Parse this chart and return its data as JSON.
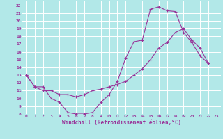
{
  "title": "",
  "xlabel": "Windchill (Refroidissement éolien,°C)",
  "background_color": "#b2e8e8",
  "grid_color": "#ffffff",
  "line_color": "#993399",
  "xlim": [
    -0.5,
    23.5
  ],
  "ylim": [
    8,
    22.5
  ],
  "xticks": [
    0,
    1,
    2,
    3,
    4,
    5,
    6,
    7,
    8,
    9,
    10,
    11,
    12,
    13,
    14,
    15,
    16,
    17,
    18,
    19,
    20,
    21,
    22,
    23
  ],
  "yticks": [
    8,
    9,
    10,
    11,
    12,
    13,
    14,
    15,
    16,
    17,
    18,
    19,
    20,
    21,
    22
  ],
  "curve1_x": [
    0,
    1,
    2,
    3,
    4,
    5,
    6,
    7,
    8,
    9,
    10,
    11,
    12,
    13,
    14,
    15,
    16,
    17,
    18,
    19,
    20,
    21,
    22
  ],
  "curve1_y": [
    13.0,
    11.5,
    11.5,
    10.0,
    9.5,
    8.2,
    8.0,
    8.0,
    8.2,
    9.5,
    10.5,
    12.2,
    15.2,
    17.3,
    17.5,
    21.5,
    21.8,
    21.3,
    21.2,
    18.5,
    17.2,
    15.5,
    14.5
  ],
  "curve2_x": [
    0,
    1,
    2,
    3,
    4,
    5,
    6,
    7,
    8,
    9,
    10,
    11,
    12,
    13,
    14,
    15,
    16,
    17,
    18,
    19,
    20,
    21,
    22
  ],
  "curve2_y": [
    13.0,
    11.5,
    11.0,
    11.0,
    10.5,
    10.5,
    10.2,
    10.5,
    11.0,
    11.2,
    11.5,
    11.8,
    12.2,
    13.0,
    13.8,
    15.0,
    16.5,
    17.2,
    18.5,
    19.0,
    17.5,
    16.5,
    14.5
  ]
}
